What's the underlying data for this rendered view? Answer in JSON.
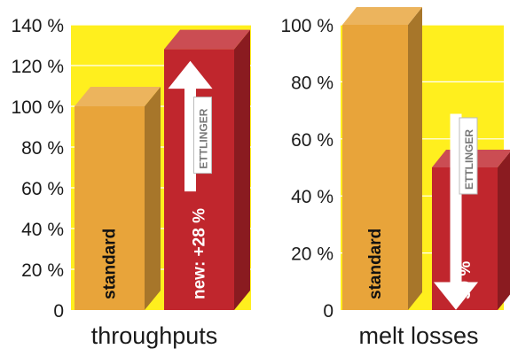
{
  "chart_data": [
    {
      "type": "bar",
      "xlabel": "throughputs",
      "ylim": [
        0,
        140
      ],
      "tick_values": [
        0,
        20,
        40,
        60,
        80,
        100,
        120,
        140
      ],
      "tick_labels": [
        "0",
        "20 %",
        "40 %",
        "60 %",
        "80 %",
        "100 %",
        "120 %",
        "140 %"
      ],
      "categories": [
        "standard",
        "new"
      ],
      "values": [
        100,
        128
      ],
      "bar_labels": [
        "standard",
        "new:  +28 %"
      ],
      "arrow": "up",
      "logo": "ETTLINGER",
      "colors": {
        "standard": "#e8a43a",
        "new": "#c0262d",
        "background": "#ffef1e"
      }
    },
    {
      "type": "bar",
      "xlabel": "melt losses",
      "ylim": [
        0,
        100
      ],
      "tick_values": [
        0,
        20,
        40,
        60,
        80,
        100
      ],
      "tick_labels": [
        "0",
        "20 %",
        "40 %",
        "60 %",
        "80 %",
        "100 %"
      ],
      "categories": [
        "standard",
        "new"
      ],
      "values": [
        100,
        50
      ],
      "bar_labels": [
        "standard",
        "50 %"
      ],
      "arrow": "down",
      "logo": "ETTLINGER",
      "colors": {
        "standard": "#e8a43a",
        "new": "#c0262d",
        "background": "#ffef1e"
      }
    }
  ]
}
